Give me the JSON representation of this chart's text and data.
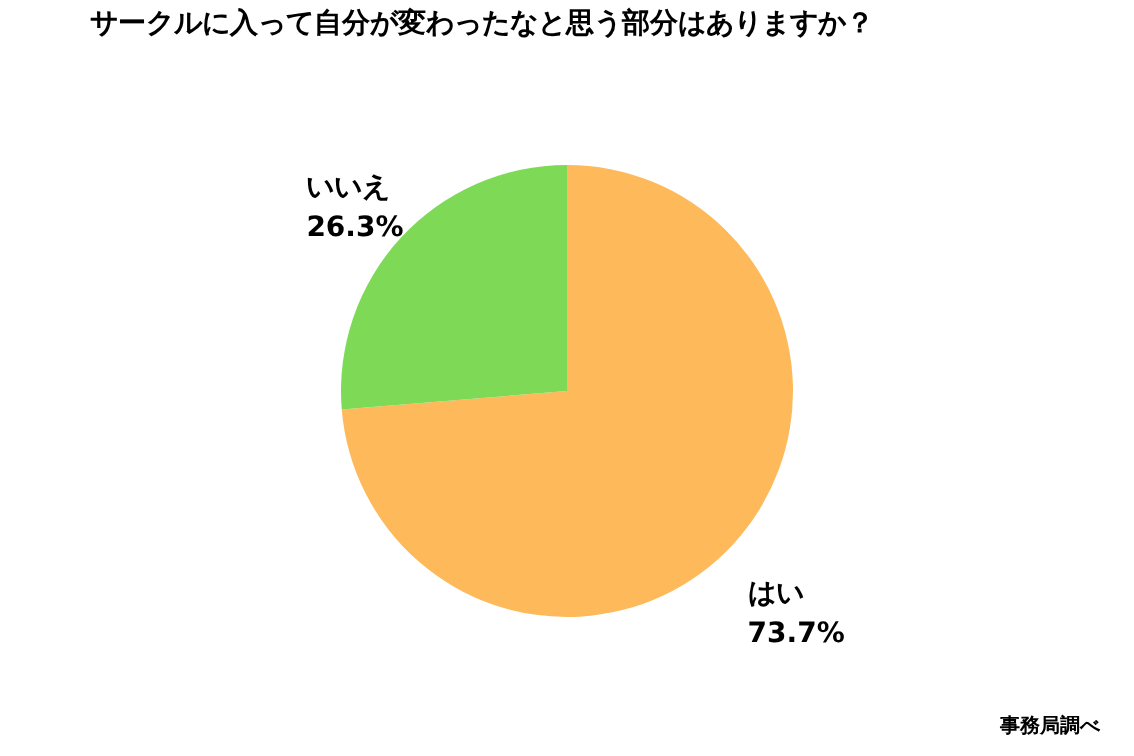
{
  "chart_data": {
    "type": "pie",
    "title": "サークルに入って自分が変わったなと思う部分はありますか？",
    "categories": [
      "はい",
      "いいえ"
    ],
    "values": [
      73.7,
      26.3
    ],
    "colors": [
      "#fdb95a",
      "#7ed957"
    ],
    "value_labels": [
      "73.7%",
      "26.3%"
    ],
    "annotations": [
      "事務局調べ"
    ],
    "legend": false
  }
}
